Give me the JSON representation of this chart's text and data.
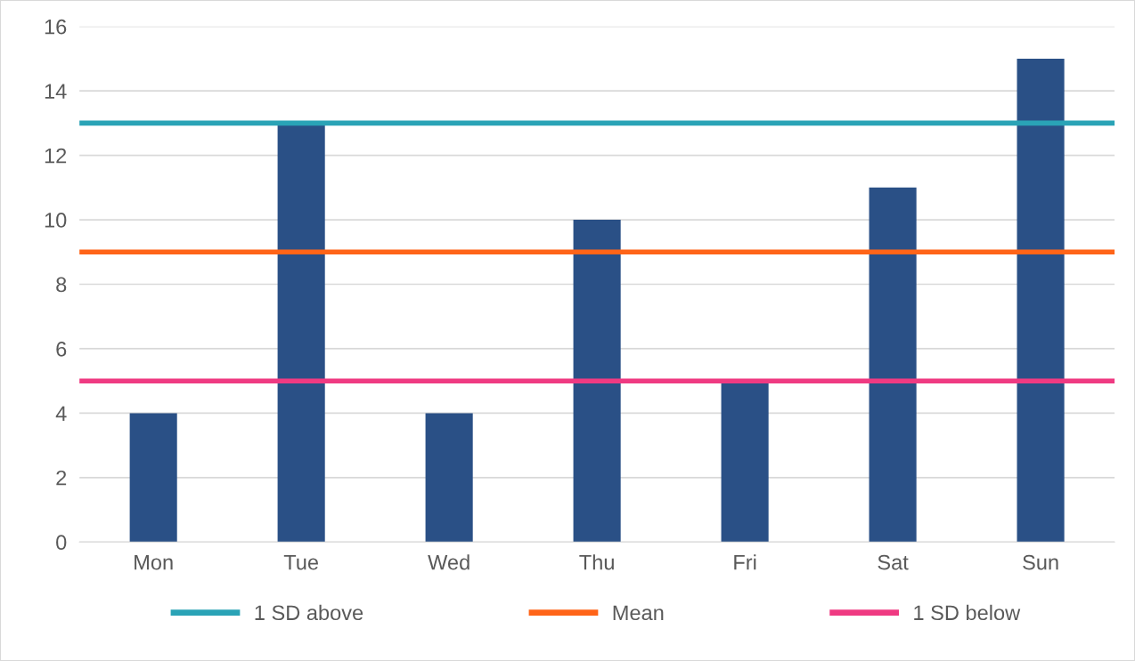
{
  "chart_data": {
    "type": "bar",
    "categories": [
      "Mon",
      "Tue",
      "Wed",
      "Thu",
      "Fri",
      "Sat",
      "Sun"
    ],
    "values": [
      4,
      13,
      4,
      10,
      5,
      11,
      15
    ],
    "color": "#2a5086",
    "ylim": [
      0,
      16
    ],
    "yticks": [
      0,
      2,
      4,
      6,
      8,
      10,
      12,
      14,
      16
    ],
    "grid": "y",
    "legend": "bottom",
    "ref_lines": [
      {
        "axis": "y",
        "value": 13,
        "label": "1 SD above",
        "color": "#2aa3b6"
      },
      {
        "axis": "y",
        "value": 9,
        "label": "Mean",
        "color": "#ff6418"
      },
      {
        "axis": "y",
        "value": 5,
        "label": "1 SD below",
        "color": "#ef3a82"
      }
    ]
  }
}
